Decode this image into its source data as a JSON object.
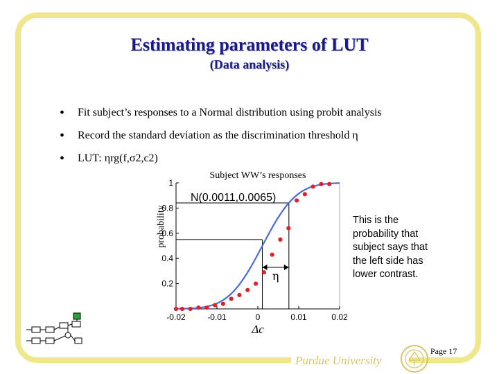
{
  "slide": {
    "title": "Estimating parameters of LUT",
    "subtitle": "(Data analysis)",
    "bullets": [
      "Fit subject’s responses to a Normal distribution using probit analysis",
      "Record the standard deviation as the discrimination threshold η",
      "LUT: ηrg(f,σ2,c2)"
    ],
    "note": "This is the probability that subject says that the left side has lower contrast.",
    "page": "Page 17",
    "footer": "Purdue University"
  },
  "chart_data": {
    "type": "scatter",
    "title": "Subject WW’s responses",
    "xlabel": "Δc",
    "ylabel": "probability",
    "xlim": [
      -0.02,
      0.02
    ],
    "ylim": [
      0,
      1
    ],
    "xticks": [
      -0.02,
      -0.01,
      0,
      0.01,
      0.02
    ],
    "xtick_labels": [
      "-0.02",
      "-0.01",
      "0",
      "0.01",
      "0.02"
    ],
    "yticks": [
      0.2,
      0.4,
      0.6,
      0.8,
      1
    ],
    "ytick_labels": [
      "0.2",
      "0.4",
      "0.6",
      "0.8",
      "1"
    ],
    "fit_label": "N(0.0011,0.0065)",
    "fit": {
      "mean": 0.0011,
      "sd": 0.0065,
      "color": "#4a6ad8"
    },
    "points": {
      "color": "#e0202a",
      "x": [
        -0.02,
        -0.0185,
        -0.0165,
        -0.0145,
        -0.0125,
        -0.0105,
        -0.0085,
        -0.0065,
        -0.0045,
        -0.0025,
        -0.0005,
        0.0015,
        0.0035,
        0.0055,
        0.0075,
        0.0095,
        0.0115,
        0.0135,
        0.0155,
        0.0175
      ],
      "y": [
        0.0,
        0.0,
        0.0,
        0.01,
        0.01,
        0.03,
        0.04,
        0.08,
        0.11,
        0.15,
        0.2,
        0.29,
        0.43,
        0.55,
        0.64,
        0.86,
        0.91,
        0.97,
        0.99,
        0.99
      ]
    },
    "annotation": {
      "guide_prob": 0.55,
      "eta_label": "η"
    },
    "grid": false
  }
}
